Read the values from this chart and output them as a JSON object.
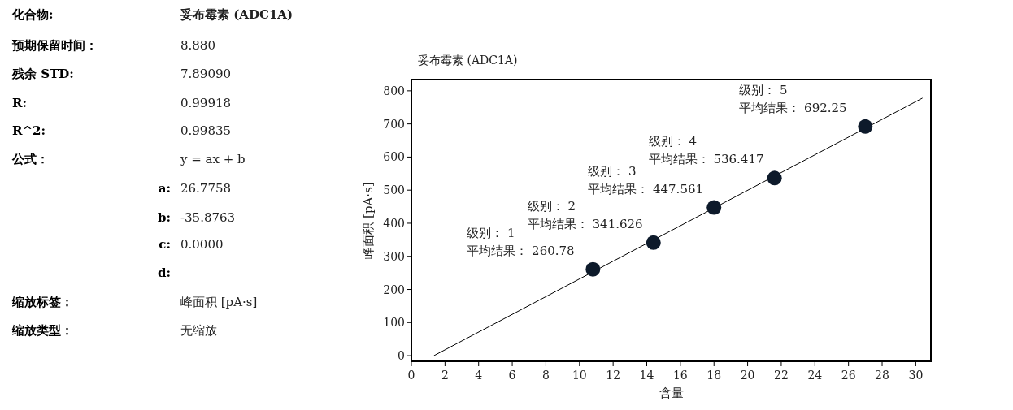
{
  "chart_data": [
    {
      "type": "other",
      "annotations": [
        "化合物:",
        "妥布霉素 (ADC1A)",
        "预期保留时间：",
        "8.880",
        "残余 STD:",
        "7.89090",
        "R:",
        "0.99918",
        "R^2:",
        "0.99835",
        "公式：",
        "y = ax + b",
        "a:",
        "26.7758",
        "b:",
        "-35.8763",
        "c:",
        "0.0000",
        "d:",
        "缩放标签：",
        "峰面积 [pA·s]",
        "缩放类型：",
        "无缩放"
      ]
    },
    {
      "type": "scatter",
      "title": "妥布霉素 (ADC1A)",
      "xlabel": "含量",
      "ylabel": "峰面积 [pA·s]",
      "xlim": [
        0,
        30.9
      ],
      "ylim": [
        -17,
        834
      ],
      "xticks": [
        0,
        2,
        4,
        6,
        8,
        10,
        12,
        14,
        16,
        18,
        20,
        22,
        24,
        26,
        28,
        30
      ],
      "yticks": [
        0,
        100,
        200,
        300,
        400,
        500,
        600,
        700,
        800
      ],
      "series": [
        {
          "type": "line",
          "x": [
            1.34,
            30.4
          ],
          "values": [
            0,
            778
          ],
          "color": "#000000"
        },
        {
          "type": "scatter",
          "x": [
            10.8,
            14.4,
            18,
            21.6,
            27
          ],
          "values": [
            260.78,
            341.626,
            447.561,
            536.417,
            692.25
          ],
          "color": "#0d1a2b",
          "marker": "circle"
        }
      ],
      "annotations": [
        {
          "text": "级别： 1\n平均结果： 260.78",
          "x": 10.8,
          "y": 260.78
        },
        {
          "text": "级别： 2\n平均结果： 341.626",
          "x": 14.4,
          "y": 341.626
        },
        {
          "text": "级别： 3\n平均结果： 447.561",
          "x": 18,
          "y": 447.561
        },
        {
          "text": "级别： 4\n平均结果： 536.417",
          "x": 21.6,
          "y": 536.417
        },
        {
          "text": "级别： 5\n平均结果： 692.25",
          "x": 27,
          "y": 692.25
        }
      ]
    }
  ]
}
